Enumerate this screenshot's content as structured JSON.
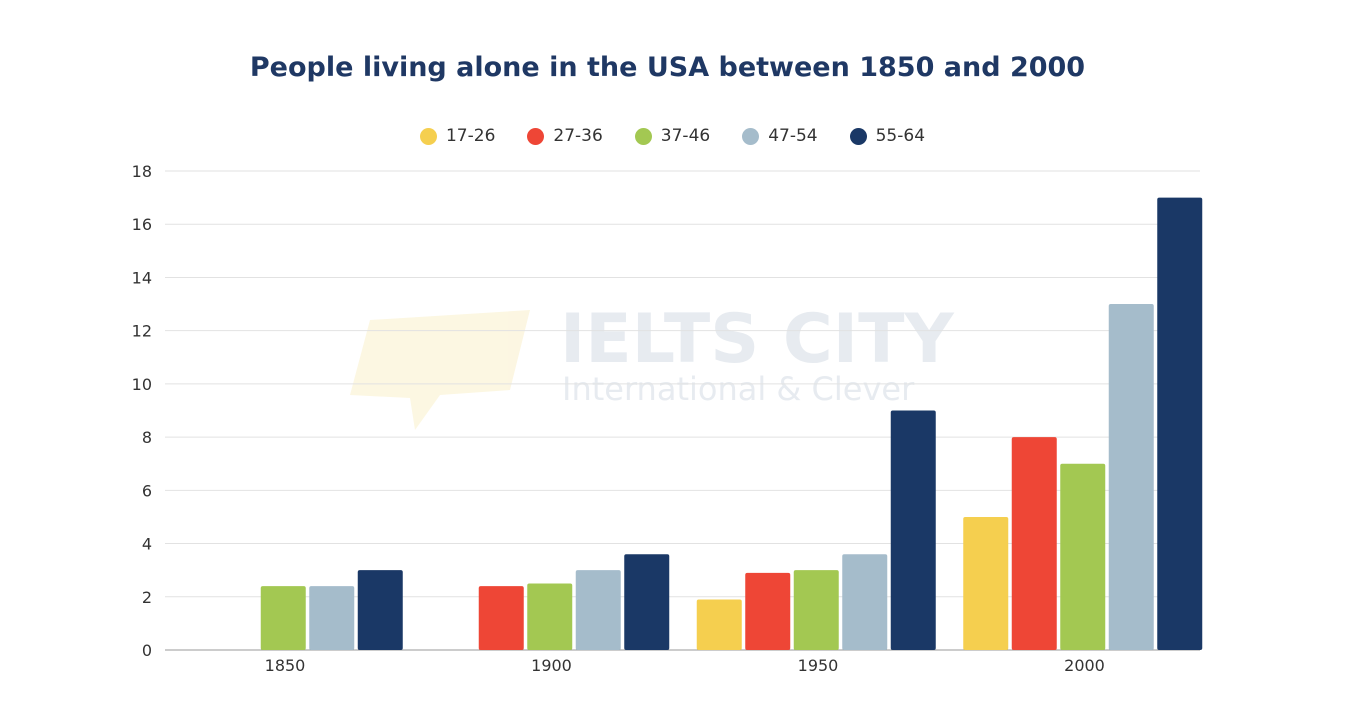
{
  "chart_data": {
    "type": "bar",
    "title": "People living alone in the USA between 1850 and 2000",
    "xlabel": "",
    "ylabel": "",
    "categories": [
      "1850",
      "1900",
      "1950",
      "2000"
    ],
    "ylim": [
      0,
      18
    ],
    "yticks": [
      0,
      2,
      4,
      6,
      8,
      10,
      12,
      14,
      16,
      18
    ],
    "grid": true,
    "legend_position": "top",
    "series": [
      {
        "name": "17-26",
        "color": "#f5cf4f",
        "values": [
          0,
          0,
          1.9,
          5
        ]
      },
      {
        "name": "27-36",
        "color": "#ee4636",
        "values": [
          0,
          2.4,
          2.9,
          8
        ]
      },
      {
        "name": "37-46",
        "color": "#a3c852",
        "values": [
          2.4,
          2.5,
          3,
          7
        ]
      },
      {
        "name": "47-54",
        "color": "#a5bccb",
        "values": [
          2.4,
          3,
          3.6,
          13
        ]
      },
      {
        "name": "55-64",
        "color": "#1a3866",
        "values": [
          3,
          3.6,
          9,
          17
        ]
      }
    ]
  },
  "watermark": {
    "line1": "IELTS CITY",
    "line2": "International & Clever"
  }
}
